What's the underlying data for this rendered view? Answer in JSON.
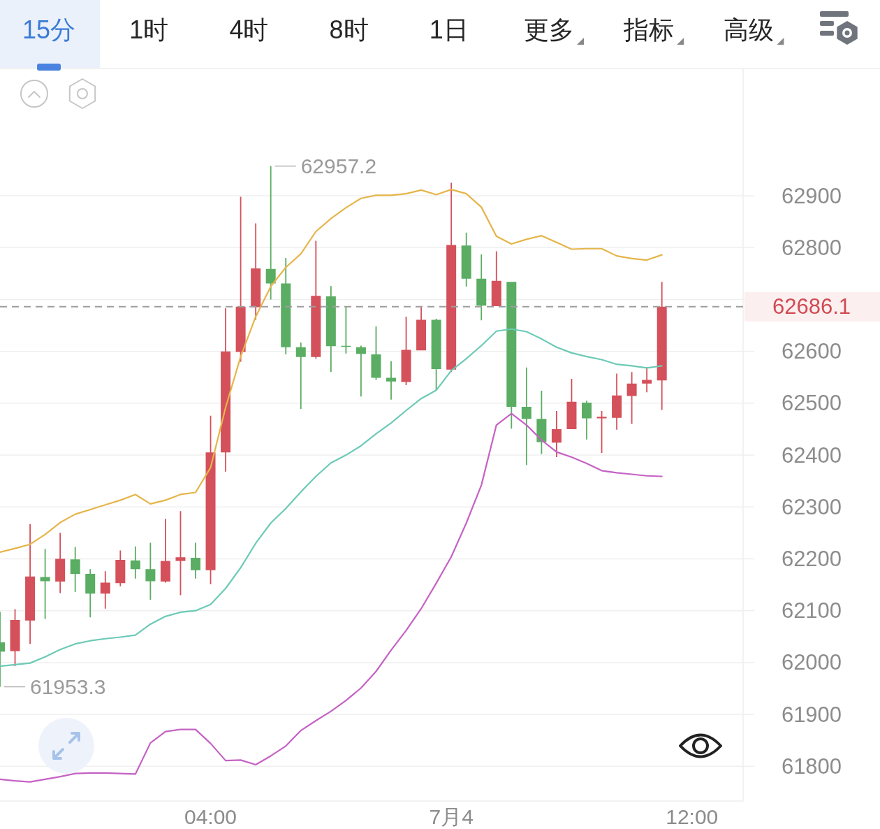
{
  "chart_data": {
    "type": "candlestick",
    "x": [
      0.5,
      0.75,
      1,
      1.25,
      1.5,
      1.75,
      2,
      2.25,
      2.5,
      2.75,
      3,
      3.25,
      3.5,
      3.75,
      4,
      4.25,
      4.5,
      4.75,
      5,
      5.25,
      5.5,
      5.75,
      6,
      6.25,
      6.5,
      6.75,
      7,
      7.25,
      7.5,
      7.75,
      8,
      8.25,
      8.5,
      8.75,
      9,
      9.25,
      9.5,
      9.75,
      10,
      10.25,
      10.5,
      10.75,
      11,
      11.25,
      11.5
    ],
    "ohlc": [
      [
        62039,
        62098,
        61953.3,
        62021
      ],
      [
        62022,
        62103,
        61993,
        62082
      ],
      [
        62081,
        62267,
        62036,
        62166
      ],
      [
        62165,
        62219,
        62084,
        62157
      ],
      [
        62156,
        62250,
        62134,
        62200
      ],
      [
        62199,
        62223,
        62136,
        62171
      ],
      [
        62171,
        62180,
        62087,
        62133
      ],
      [
        62133,
        62176,
        62104,
        62154
      ],
      [
        62153,
        62216,
        62147,
        62198
      ],
      [
        62197,
        62224,
        62162,
        62180
      ],
      [
        62180,
        62231,
        62121,
        62157
      ],
      [
        62156,
        62277,
        62154,
        62196
      ],
      [
        62196,
        62292,
        62130,
        62203
      ],
      [
        62202,
        62231,
        62162,
        62178
      ],
      [
        62178,
        62476,
        62151,
        62405
      ],
      [
        62405,
        62683,
        62368,
        62600
      ],
      [
        62599,
        62898,
        62580,
        62686
      ],
      [
        62685,
        62847,
        62661,
        62760
      ],
      [
        62759,
        62957.2,
        62700,
        62731
      ],
      [
        62731,
        62780,
        62594,
        62608
      ],
      [
        62608,
        62617,
        62489,
        62589
      ],
      [
        62589,
        62813,
        62586,
        62707
      ],
      [
        62706,
        62726,
        62560,
        62610
      ],
      [
        62610,
        62686,
        62596,
        62609
      ],
      [
        62608,
        62611,
        62513,
        62595
      ],
      [
        62594,
        62648,
        62545,
        62549
      ],
      [
        62549,
        62581,
        62507,
        62542
      ],
      [
        62541,
        62667,
        62535,
        62603
      ],
      [
        62602,
        62687,
        62602,
        62661
      ],
      [
        62661,
        62663,
        62524,
        62566
      ],
      [
        62565,
        62925,
        62560,
        62805
      ],
      [
        62804,
        62829,
        62725,
        62740
      ],
      [
        62740,
        62787,
        62660,
        62688
      ],
      [
        62687,
        62793,
        62687,
        62736
      ],
      [
        62734,
        62734,
        62451,
        62493
      ],
      [
        62493,
        62569,
        62381,
        62470
      ],
      [
        62470,
        62524,
        62402,
        62425
      ],
      [
        62424,
        62485,
        62396,
        62450
      ],
      [
        62450,
        62547,
        62450,
        62503
      ],
      [
        62501,
        62505,
        62430,
        62471
      ],
      [
        62471,
        62485,
        62404,
        62474
      ],
      [
        62472,
        62557,
        62449,
        62515
      ],
      [
        62514,
        62560,
        62460,
        62538
      ],
      [
        62538,
        62569,
        62521,
        62545
      ],
      [
        62544,
        62734,
        62487,
        62686.1
      ]
    ],
    "colors": [
      "#5aad62",
      "#d4505a",
      "#d4505a",
      "#5aad62",
      "#d4505a",
      "#5aad62",
      "#5aad62",
      "#d4505a",
      "#d4505a",
      "#5aad62",
      "#5aad62",
      "#d4505a",
      "#d4505a",
      "#5aad62",
      "#d4505a",
      "#d4505a",
      "#d4505a",
      "#d4505a",
      "#5aad62",
      "#5aad62",
      "#5aad62",
      "#d4505a",
      "#5aad62",
      "#5aad62",
      "#5aad62",
      "#5aad62",
      "#5aad62",
      "#d4505a",
      "#d4505a",
      "#5aad62",
      "#d4505a",
      "#5aad62",
      "#5aad62",
      "#d4505a",
      "#5aad62",
      "#5aad62",
      "#5aad62",
      "#d4505a",
      "#d4505a",
      "#5aad62",
      "#d4505a",
      "#d4505a",
      "#d4505a",
      "#d4505a",
      "#d4505a"
    ],
    "series": [
      {
        "type": "line",
        "color": "#e5b54a",
        "values": [
          62213,
          62220,
          62228,
          62247,
          62270,
          62286,
          62295,
          62304,
          62313,
          62324,
          62306,
          62313,
          62324,
          62328,
          62376,
          62492,
          62590,
          62667,
          62725,
          62762,
          62788,
          62831,
          62856,
          62877,
          62895,
          62901,
          62901,
          62904,
          62911,
          62902,
          62912,
          62904,
          62878,
          62822,
          62807,
          62816,
          62823,
          62810,
          62797,
          62798,
          62798,
          62784,
          62779,
          62776,
          62786
        ]
      },
      {
        "type": "line",
        "color": "#6ccab6",
        "values": [
          61993,
          61996,
          61999,
          62011,
          62025,
          62036,
          62042,
          62046,
          62049,
          62053,
          62074,
          62089,
          62097,
          62100,
          62112,
          62143,
          62183,
          62230,
          62269,
          62297,
          62329,
          62359,
          62385,
          62400,
          62418,
          62441,
          62462,
          62486,
          62509,
          62525,
          62563,
          62586,
          62611,
          62639,
          62643,
          62638,
          62624,
          62608,
          62597,
          62590,
          62584,
          62575,
          62572,
          62568,
          62572
        ]
      },
      {
        "type": "line",
        "color": "#c562c4",
        "values": [
          61775,
          61772,
          61770,
          61775,
          61780,
          61786,
          61787,
          61787,
          61786,
          61785,
          61845,
          61867,
          61871,
          61871,
          61844,
          61811,
          61812,
          61803,
          61820,
          61839,
          61869,
          61888,
          61906,
          61927,
          61951,
          61983,
          62024,
          62062,
          62104,
          62153,
          62204,
          62269,
          62342,
          62458,
          62480,
          62458,
          62429,
          62406,
          62396,
          62384,
          62370,
          62366,
          62363,
          62360,
          62359
        ]
      }
    ],
    "xlim": [
      0.5,
      12.85
    ],
    "ylim": [
      61733,
      63144
    ],
    "xticks": [
      {
        "value": 4,
        "label": "04:00"
      },
      {
        "value": 8,
        "label": "7月4"
      },
      {
        "value": 12,
        "label": "12:00"
      }
    ],
    "yticks": [
      61800,
      61900,
      62000,
      62100,
      62200,
      62300,
      62400,
      62500,
      62600,
      {
        "value": 62700,
        "label": null
      },
      62800,
      62900
    ],
    "grid": "y",
    "ref_lines": [
      {
        "axis": "y",
        "value": 62686.1,
        "label": "62686.1",
        "color": "#9e9e9e",
        "line_style": "dashed"
      }
    ],
    "annotations": [
      "15分",
      "1时",
      "4时",
      "8时",
      "1日",
      "更多",
      "指标",
      "高级",
      {
        "text": "62957.2",
        "x": 5,
        "y": 62957.2
      },
      {
        "text": "61953.3",
        "x": 0.5,
        "y": 61953.3
      }
    ]
  }
}
